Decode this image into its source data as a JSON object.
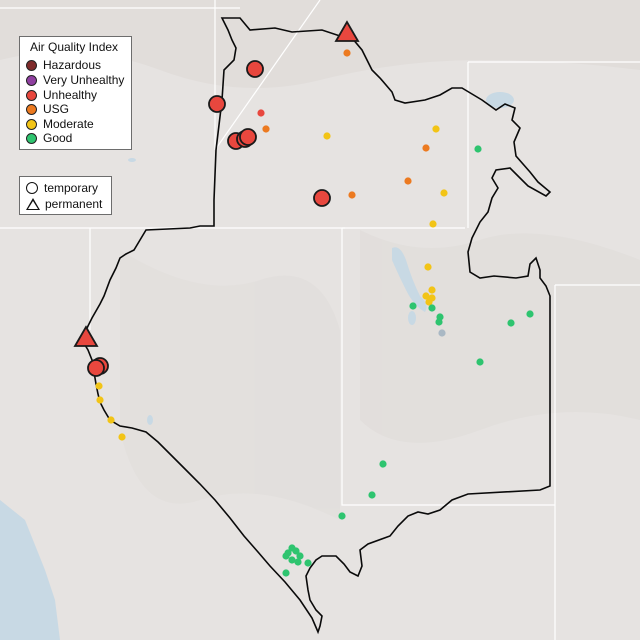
{
  "legend_aqi": {
    "title": "Air Quality Index",
    "items": [
      {
        "label": "Hazardous",
        "color": "#7e2a2a"
      },
      {
        "label": "Very Unhealthy",
        "color": "#8f3fa0"
      },
      {
        "label": "Unhealthy",
        "color": "#e8473e"
      },
      {
        "label": "USG",
        "color": "#ec7a20"
      },
      {
        "label": "Moderate",
        "color": "#f2c416"
      },
      {
        "label": "Good",
        "color": "#2ec46f"
      }
    ]
  },
  "legend_type": {
    "items": [
      {
        "label": "temporary",
        "shape": "circle"
      },
      {
        "label": "permanent",
        "shape": "triangle"
      }
    ]
  },
  "colors": {
    "land": "#e6e3e1",
    "water": "#c8d9e4",
    "boundary": "#0a0a0a",
    "state_lines": "#ffffff"
  }
}
